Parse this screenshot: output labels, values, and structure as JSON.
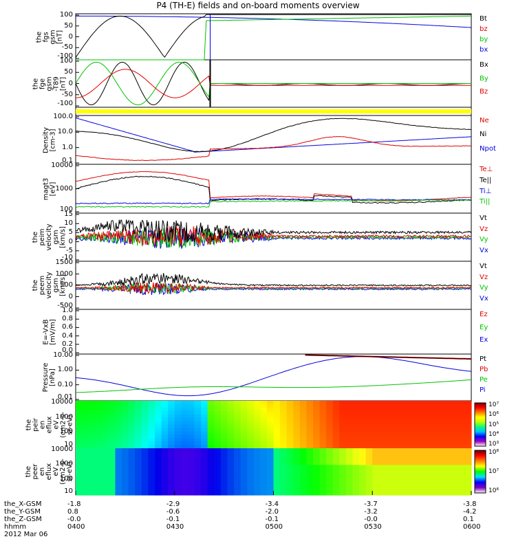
{
  "title": "P4 (TH-E) fields and on-board moments overview",
  "colors": {
    "black": "#000000",
    "red": "#e00000",
    "green": "#00c000",
    "blue": "#0000e0",
    "yellow": "#ffff00"
  },
  "chart_data": [
    {
      "id": "fgs",
      "type": "line",
      "ylabel": "the\nfgs\ngsm\n[nT]",
      "yticks": [
        "100",
        "50",
        "0",
        "-50",
        "-100"
      ],
      "legend": [
        {
          "name": "Bt",
          "color": "black"
        },
        {
          "name": "bz",
          "color": "red"
        },
        {
          "name": "by",
          "color": "green"
        },
        {
          "name": "bx",
          "color": "blue"
        }
      ]
    },
    {
      "id": "fgm",
      "type": "line",
      "ylabel": "the\nfge\ngsm\n-T89\n[nT]",
      "yticks": [
        "100",
        "50",
        "0",
        "-50",
        "-100"
      ],
      "legend": [
        {
          "name": "Bx",
          "color": "black"
        },
        {
          "name": "By",
          "color": "green"
        },
        {
          "name": "Bz",
          "color": "red"
        }
      ]
    },
    {
      "id": "bar",
      "type": "bar",
      "note": "yellow status bar"
    },
    {
      "id": "density",
      "type": "line",
      "scale": "log",
      "ylabel": "Density\n[cm-3]",
      "yticks": [
        "100.0",
        "10.0",
        "1.0",
        "0.1"
      ],
      "legend": [
        {
          "name": "Ne",
          "color": "red"
        },
        {
          "name": "Ni",
          "color": "black"
        },
        {
          "name": "Npot",
          "color": "blue"
        }
      ]
    },
    {
      "id": "temp",
      "type": "line",
      "scale": "log",
      "ylabel": "magt3\n[eV]",
      "yticks": [
        "10000",
        "1000",
        "100"
      ],
      "legend": [
        {
          "name": "Te⊥",
          "color": "red"
        },
        {
          "name": "Te||",
          "color": "black"
        },
        {
          "name": "Ti⊥",
          "color": "blue"
        },
        {
          "name": "Ti||",
          "color": "green"
        }
      ]
    },
    {
      "id": "vi",
      "type": "line",
      "ylabel": "the\npeim\nvelocity\ngsm\n[km/s]",
      "yticks": [
        "15",
        "10",
        "5",
        "0",
        "-5",
        "-10"
      ],
      "legend": [
        {
          "name": "Vt",
          "color": "black"
        },
        {
          "name": "Vz",
          "color": "red"
        },
        {
          "name": "Vy",
          "color": "green"
        },
        {
          "name": "Vx",
          "color": "blue"
        }
      ]
    },
    {
      "id": "ve",
      "type": "line",
      "ylabel": "the\npeem\nvelocity\ngsm\n[km/s]",
      "yticks": [
        "1500",
        "1000",
        "500",
        "0",
        "-500"
      ],
      "legend": [
        {
          "name": "Vt",
          "color": "black"
        },
        {
          "name": "Vz",
          "color": "red"
        },
        {
          "name": "Vy",
          "color": "green"
        },
        {
          "name": "Vx",
          "color": "blue"
        }
      ]
    },
    {
      "id": "efield",
      "type": "line",
      "ylabel": "E=-VxB\n[mV/m]",
      "yticks": [
        "1.0",
        "0.8",
        "0.6",
        "0.4",
        "0.2",
        "0.0"
      ],
      "legend": [
        {
          "name": "Ez",
          "color": "red"
        },
        {
          "name": "Ey",
          "color": "green"
        },
        {
          "name": "Ex",
          "color": "blue"
        }
      ]
    },
    {
      "id": "pressure",
      "type": "line",
      "scale": "log",
      "ylabel": "Pressure\n[nPa]",
      "yticks": [
        "10.00",
        "1.00",
        "0.10",
        "0.01"
      ],
      "legend": [
        {
          "name": "Pt",
          "color": "black"
        },
        {
          "name": "Pb",
          "color": "red"
        },
        {
          "name": "Pe",
          "color": "green"
        },
        {
          "name": "Pi",
          "color": "blue"
        }
      ]
    },
    {
      "id": "ieflux",
      "type": "heatmap",
      "ylabel": "the\npeir\nen\neflux\neV\n(cm2-s-\nsr-eV)",
      "yticks": [
        "10000",
        "1000",
        "100",
        "10"
      ],
      "cbar": [
        "10⁷",
        "10⁶",
        "10⁵",
        "10⁴",
        "10³"
      ]
    },
    {
      "id": "eeflux",
      "type": "heatmap",
      "ylabel": "the\npeer\nen\neflux\neV\n(cm2-s-\nsr-eV)",
      "yticks": [
        "10000",
        "1000",
        "100",
        "10"
      ],
      "cbar": [
        "10⁸",
        "10⁷",
        "10⁶"
      ]
    }
  ],
  "xaxis": {
    "rows": [
      {
        "label": "the_X-GSM",
        "values": [
          "-1.8",
          "-2.9",
          "-3.4",
          "-3.7",
          "-3.8"
        ]
      },
      {
        "label": "the_Y-GSM",
        "values": [
          "0.8",
          "-0.6",
          "-2.0",
          "-3.2",
          "-4.2"
        ]
      },
      {
        "label": "the_Z-GSM",
        "values": [
          "-0.0",
          "-0.1",
          "-0.1",
          "-0.0",
          "0.1"
        ]
      },
      {
        "label": "hhmm",
        "values": [
          "0400",
          "0430",
          "0500",
          "0530",
          "0600"
        ]
      }
    ],
    "date": "2012 Mar 06"
  }
}
